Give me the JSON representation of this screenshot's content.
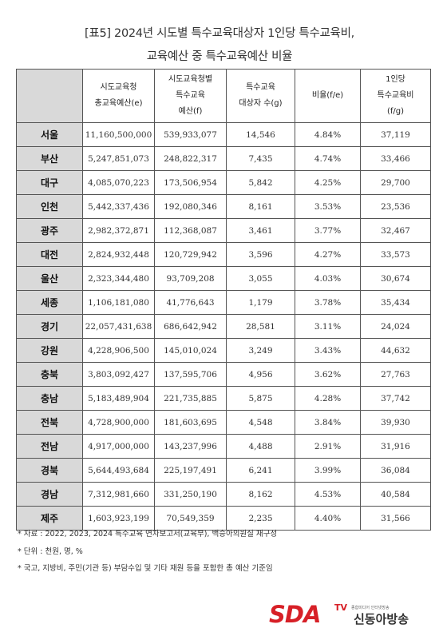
{
  "title": {
    "line1": "[표5] 2024년 시도별 특수교육대상자 1인당 특수교육비,",
    "line2": "교육예산 중 특수교육예산 비율"
  },
  "table": {
    "headers": [
      "",
      "시도교육청\n총교육예산(e)",
      "시도교육청별\n특수교육\n예산(f)",
      "특수교육\n대상자 수(g)",
      "비율(f/e)",
      "1인당\n특수교육비\n(f/g)"
    ],
    "rows": [
      [
        "서울",
        "11,160,500,000",
        "539,933,077",
        "14,546",
        "4.84%",
        "37,119"
      ],
      [
        "부산",
        "5,247,851,073",
        "248,822,317",
        "7,435",
        "4.74%",
        "33,466"
      ],
      [
        "대구",
        "4,085,070,223",
        "173,506,954",
        "5,842",
        "4.25%",
        "29,700"
      ],
      [
        "인천",
        "5,442,337,436",
        "192,080,346",
        "8,161",
        "3.53%",
        "23,536"
      ],
      [
        "광주",
        "2,982,372,871",
        "112,368,087",
        "3,461",
        "3.77%",
        "32,467"
      ],
      [
        "대전",
        "2,824,932,448",
        "120,729,942",
        "3,596",
        "4.27%",
        "33,573"
      ],
      [
        "울산",
        "2,323,344,480",
        "93,709,208",
        "3,055",
        "4.03%",
        "30,674"
      ],
      [
        "세종",
        "1,106,181,080",
        "41,776,643",
        "1,179",
        "3.78%",
        "35,434"
      ],
      [
        "경기",
        "22,057,431,638",
        "686,642,942",
        "28,581",
        "3.11%",
        "24,024"
      ],
      [
        "강원",
        "4,228,906,500",
        "145,010,024",
        "3,249",
        "3.43%",
        "44,632"
      ],
      [
        "충북",
        "3,803,092,427",
        "137,595,706",
        "4,956",
        "3.62%",
        "27,763"
      ],
      [
        "충남",
        "5,183,489,904",
        "221,735,885",
        "5,875",
        "4.28%",
        "37,742"
      ],
      [
        "전북",
        "4,728,900,000",
        "181,603,695",
        "4,548",
        "3.84%",
        "39,930"
      ],
      [
        "전남",
        "4,917,000,000",
        "143,237,996",
        "4,488",
        "2.91%",
        "31,916"
      ],
      [
        "경북",
        "5,644,493,684",
        "225,197,491",
        "6,241",
        "3.99%",
        "36,084"
      ],
      [
        "경남",
        "7,312,981,660",
        "331,250,190",
        "8,162",
        "4.53%",
        "40,584"
      ],
      [
        "제주",
        "1,603,923,199",
        "70,549,359",
        "2,235",
        "4.40%",
        "31,566"
      ]
    ]
  },
  "notes": [
    "* 자료 : 2022, 2023, 2024 특수교육 연차보고서(교육부), 백승아의원실 재구성",
    "* 단위 : 천원, 명, %",
    "* 국고, 지방비, 주민(기관 등) 부담수입 및 기타 재원 등을 포함한 총 예산 기준임"
  ],
  "logo": {
    "mark": "SDA",
    "tv": "TV",
    "tagline": "종합미디어 인터넷방송",
    "name": "신동아방송",
    "color": "#d72027"
  }
}
